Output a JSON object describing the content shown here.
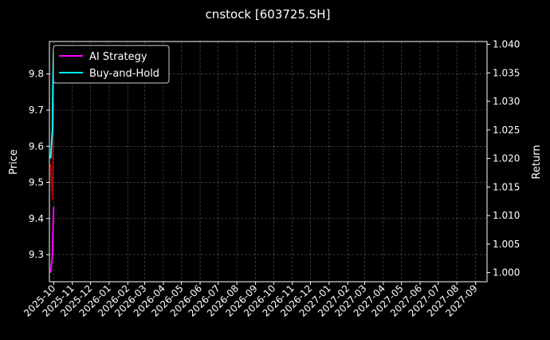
{
  "chart_data": {
    "type": "line",
    "title": "cnstock [603725.SH]",
    "ylabel": "Price",
    "y2label": "Return",
    "ylim": [
      9.225,
      9.89
    ],
    "y2lim": [
      0.9984,
      1.0405
    ],
    "xlim": [
      "2025-09-24",
      "2027-09-20"
    ],
    "yticks": [
      "9.3",
      "9.4",
      "9.5",
      "9.6",
      "9.7",
      "9.8"
    ],
    "y2ticks": [
      "1.000",
      "1.005",
      "1.010",
      "1.015",
      "1.020",
      "1.025",
      "1.030",
      "1.035",
      "1.040"
    ],
    "xticks": [
      "2025-10",
      "2025-11",
      "2025-12",
      "2026-01",
      "2026-02",
      "2026-03",
      "2026-04",
      "2026-05",
      "2026-06",
      "2026-07",
      "2026-08",
      "2026-09",
      "2026-10",
      "2026-11",
      "2026-12",
      "2027-01",
      "2027-02",
      "2027-03",
      "2027-04",
      "2027-05",
      "2027-06",
      "2027-07",
      "2027-08",
      "2027-09"
    ],
    "grid": true,
    "legend_position": "top-left",
    "price": {
      "color": "#cc0000",
      "x": [
        "2025-09-26",
        "2025-09-29",
        "2025-09-30",
        "2025-10-01"
      ],
      "values": [
        9.55,
        9.45,
        9.62,
        9.72
      ]
    },
    "series": [
      {
        "name": "AI Strategy",
        "axis": "right",
        "color": "#ff00ff",
        "x": [
          "2025-09-26",
          "2025-09-29",
          "2025-09-30",
          "2025-10-01"
        ],
        "values": [
          1.0,
          1.003,
          1.008,
          1.0115
        ]
      },
      {
        "name": "Buy-and-Hold",
        "axis": "right",
        "color": "#00ffff",
        "x": [
          "2025-09-26",
          "2025-09-29",
          "2025-09-30",
          "2025-10-01"
        ],
        "values": [
          1.02,
          1.025,
          1.034,
          1.039
        ]
      }
    ]
  }
}
